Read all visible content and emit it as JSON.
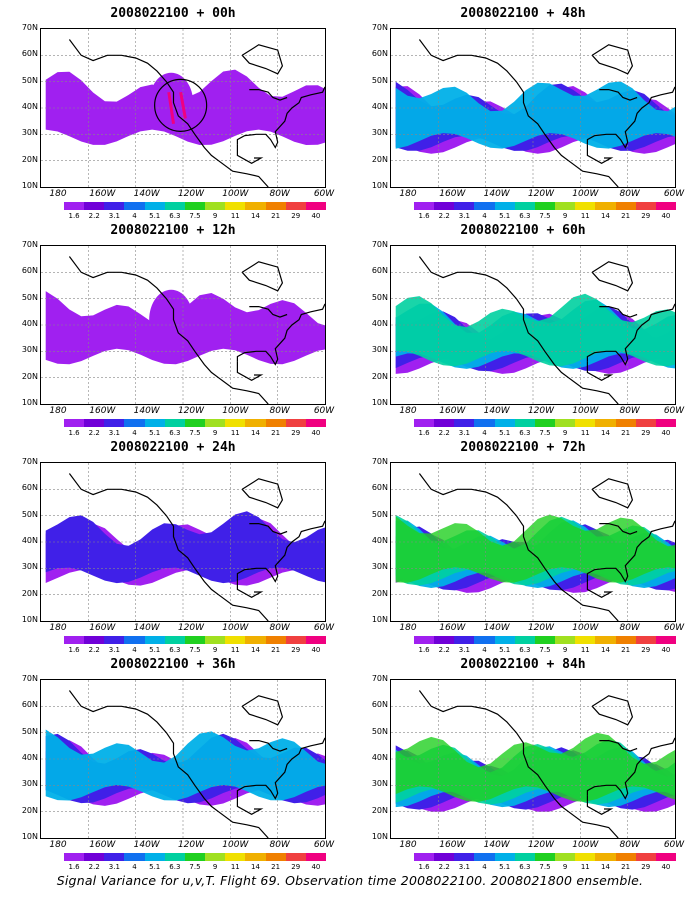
{
  "panels": [
    {
      "title": "2008022100 + 00h",
      "level": 0.15,
      "circle": true
    },
    {
      "title": "2008022100 + 48h",
      "level": 0.55,
      "circle": false
    },
    {
      "title": "2008022100 + 12h",
      "level": 0.25,
      "circle": false
    },
    {
      "title": "2008022100 + 60h",
      "level": 0.7,
      "circle": false
    },
    {
      "title": "2008022100 + 24h",
      "level": 0.45,
      "circle": false
    },
    {
      "title": "2008022100 + 72h",
      "level": 0.8,
      "circle": false
    },
    {
      "title": "2008022100 + 36h",
      "level": 0.6,
      "circle": false
    },
    {
      "title": "2008022100 + 84h",
      "level": 0.9,
      "circle": false
    }
  ],
  "lat_labels": [
    "70N",
    "60N",
    "50N",
    "40N",
    "30N",
    "20N",
    "10N"
  ],
  "lon_labels": [
    "180",
    "160W",
    "140W",
    "120W",
    "100W",
    "80W",
    "60W"
  ],
  "colorbar_labels": [
    "1.6",
    "2.2",
    "3.1",
    "4",
    "5.1",
    "6.3",
    "7.5",
    "9",
    "11",
    "14",
    "21",
    "29",
    "40"
  ],
  "colorbar_colors": [
    "#a020f0",
    "#7000d8",
    "#4020e8",
    "#1070f0",
    "#00b0e8",
    "#00d0a0",
    "#20d020",
    "#a0e020",
    "#f0e000",
    "#f0b000",
    "#f08000",
    "#f04040",
    "#f00080"
  ],
  "caption": "Signal Variance for u,v,T. Flight 69. Observation time 2008022100. 2008021800 ensemble."
}
